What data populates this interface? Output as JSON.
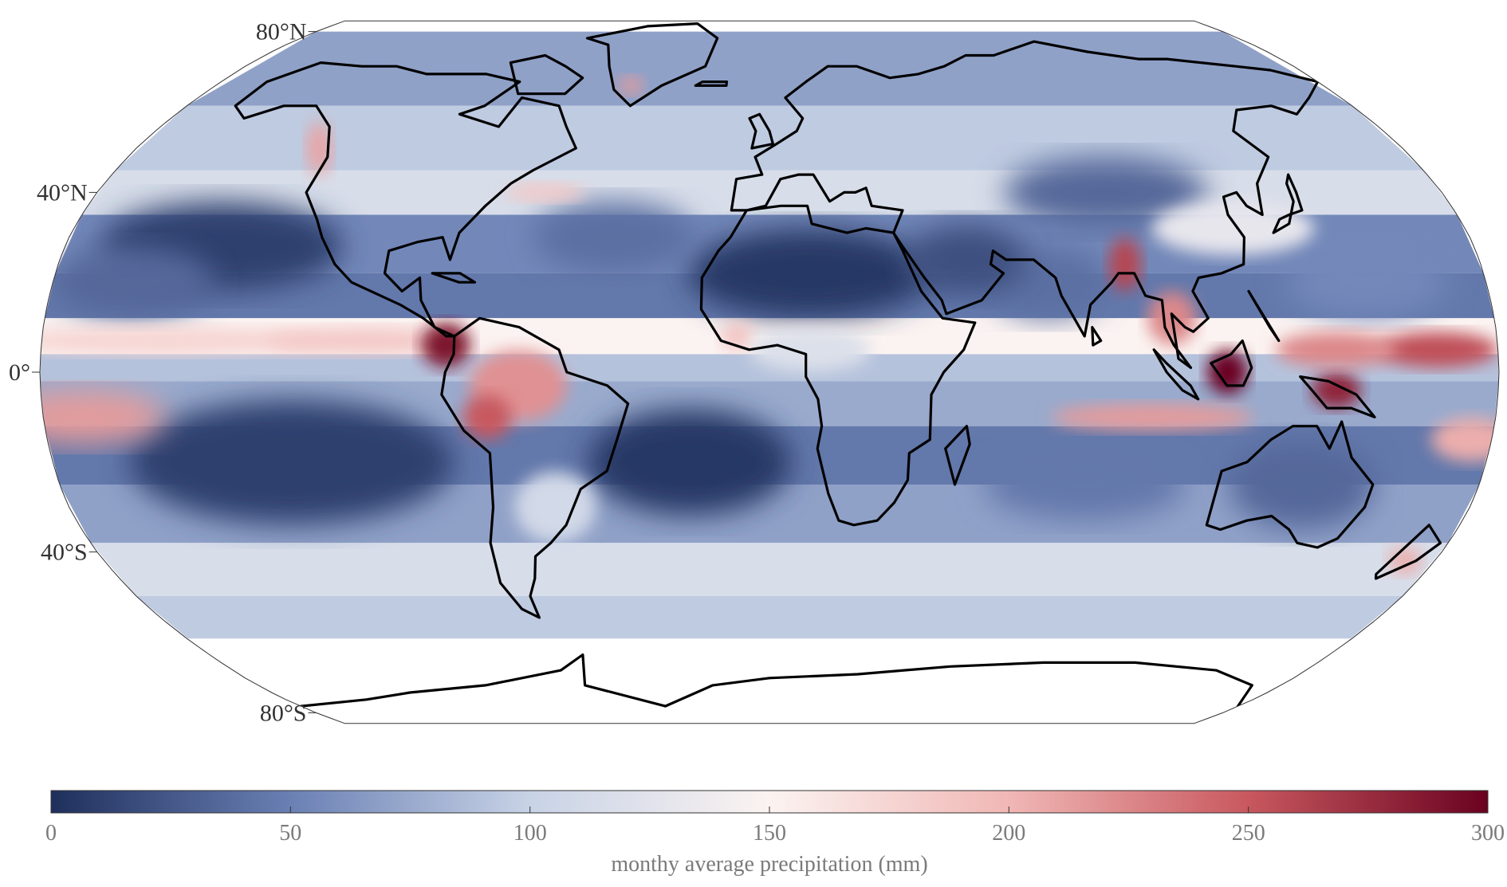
{
  "map": {
    "projection": "robinson",
    "latitude_labels": [
      {
        "lat": 80,
        "text": "80°N"
      },
      {
        "lat": 40,
        "text": "40°N"
      },
      {
        "lat": 0,
        "text": "0°"
      },
      {
        "lat": -40,
        "text": "40°S"
      },
      {
        "lat": -80,
        "text": "80°S"
      }
    ],
    "data_extent_lat": [
      -60,
      80
    ],
    "coastline_color": "#000000",
    "missing_data_color": "#ffffff"
  },
  "colorbar": {
    "min": 0,
    "max": 300,
    "ticks": [
      0,
      50,
      100,
      150,
      200,
      250,
      300
    ],
    "tick_labels": [
      "0",
      "50",
      "100",
      "150",
      "200",
      "250",
      "300"
    ],
    "label": "monthy average precipitation (mm)",
    "colormap": [
      {
        "value": 0,
        "color": "#1f2f5c"
      },
      {
        "value": 50,
        "color": "#6a80b4"
      },
      {
        "value": 100,
        "color": "#c8d3e6"
      },
      {
        "value": 150,
        "color": "#fbf3f1"
      },
      {
        "value": 200,
        "color": "#f0b7b5"
      },
      {
        "value": 250,
        "color": "#c8585f"
      },
      {
        "value": 300,
        "color": "#6a0220"
      }
    ]
  }
}
